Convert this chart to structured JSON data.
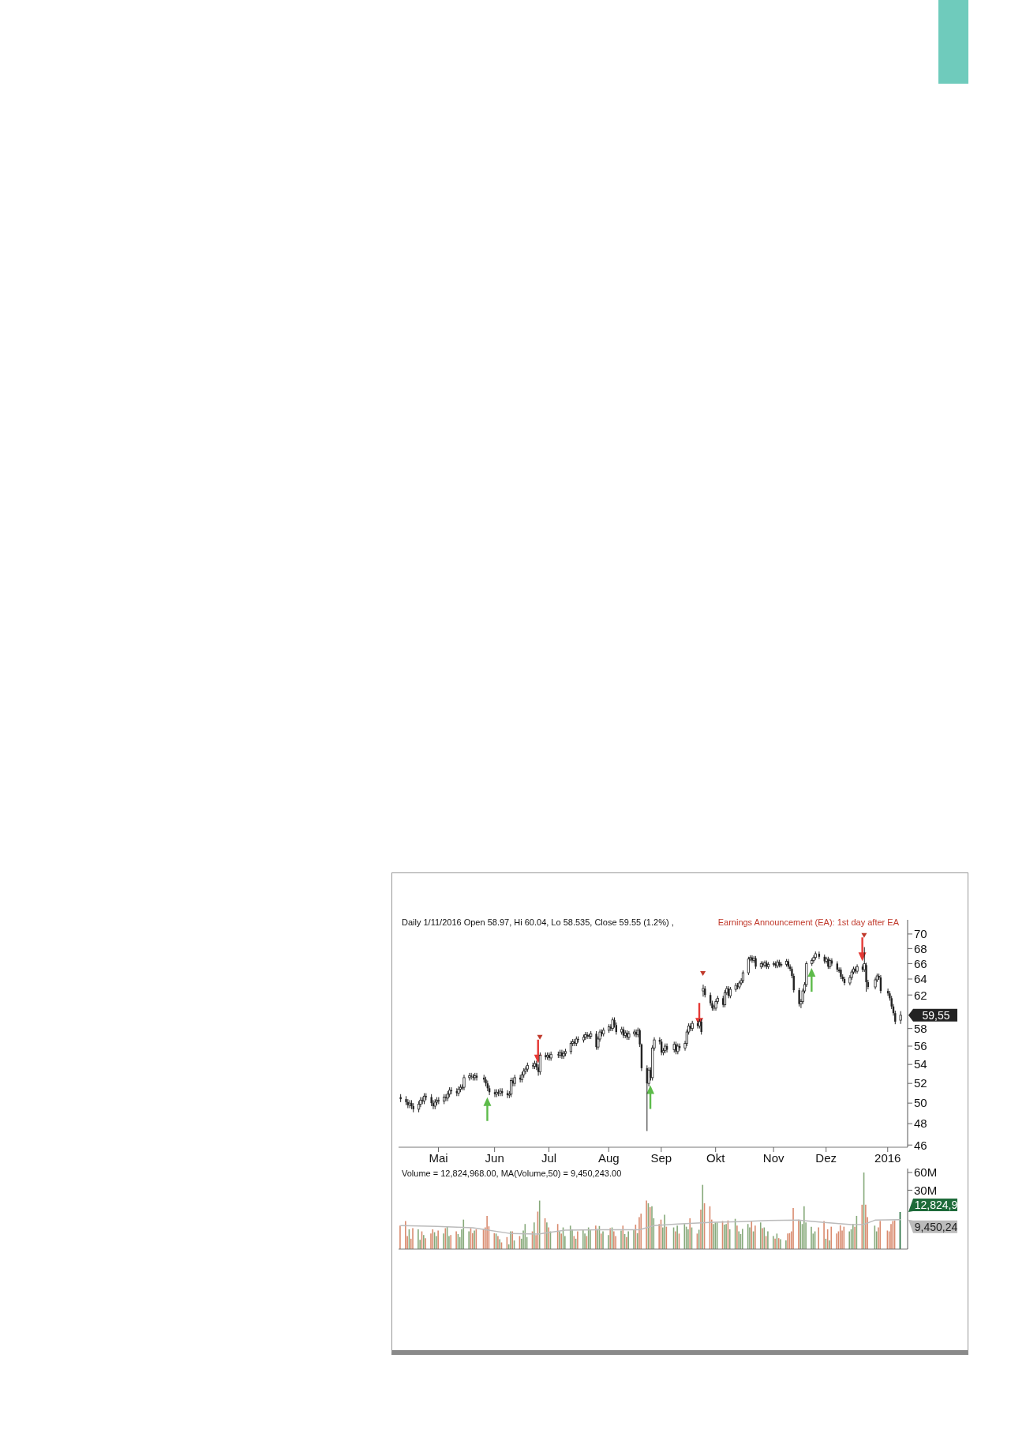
{
  "chart_data": [
    {
      "type": "candlestick",
      "title": "Daily 1/11/2016 Open 58.97, Hi 60.04, Lo 58.535, Close 59.55 (1.2%) ,",
      "color": "#222222",
      "legend": "top right",
      "log": true,
      "x": [
        "2015-04-10",
        "2015-04-13",
        "2015-04-14",
        "2015-04-15",
        "2015-04-16",
        "2015-04-17",
        "2015-04-20",
        "2015-04-21",
        "2015-04-22",
        "2015-04-23",
        "2015-04-24",
        "2015-04-27",
        "2015-04-28",
        "2015-04-29",
        "2015-04-30",
        "2015-05-01",
        "2015-05-04",
        "2015-05-05",
        "2015-05-06",
        "2015-05-07",
        "2015-05-08",
        "2015-05-11",
        "2015-05-12",
        "2015-05-13",
        "2015-05-14",
        "2015-05-15",
        "2015-05-18",
        "2015-05-19",
        "2015-05-20",
        "2015-05-21",
        "2015-05-22",
        "2015-05-26",
        "2015-05-27",
        "2015-05-28",
        "2015-05-29",
        "2015-06-01",
        "2015-06-02",
        "2015-06-03",
        "2015-06-04",
        "2015-06-05",
        "2015-06-08",
        "2015-06-09",
        "2015-06-10",
        "2015-06-11",
        "2015-06-12",
        "2015-06-15",
        "2015-06-16",
        "2015-06-17",
        "2015-06-18",
        "2015-06-19",
        "2015-06-22",
        "2015-06-23",
        "2015-06-24",
        "2015-06-25",
        "2015-06-26",
        "2015-06-29",
        "2015-06-30",
        "2015-07-01",
        "2015-07-02",
        "2015-07-06",
        "2015-07-07",
        "2015-07-08",
        "2015-07-09",
        "2015-07-10",
        "2015-07-13",
        "2015-07-14",
        "2015-07-15",
        "2015-07-16",
        "2015-07-17",
        "2015-07-20",
        "2015-07-21",
        "2015-07-22",
        "2015-07-23",
        "2015-07-24",
        "2015-07-27",
        "2015-07-28",
        "2015-07-29",
        "2015-07-30",
        "2015-07-31",
        "2015-08-03",
        "2015-08-04",
        "2015-08-05",
        "2015-08-06",
        "2015-08-07",
        "2015-08-10",
        "2015-08-11",
        "2015-08-12",
        "2015-08-13",
        "2015-08-14",
        "2015-08-17",
        "2015-08-18",
        "2015-08-19",
        "2015-08-20",
        "2015-08-21",
        "2015-08-24",
        "2015-08-25",
        "2015-08-26",
        "2015-08-27",
        "2015-08-28",
        "2015-08-31",
        "2015-09-01",
        "2015-09-02",
        "2015-09-03",
        "2015-09-04",
        "2015-09-08",
        "2015-09-09",
        "2015-09-10",
        "2015-09-11",
        "2015-09-14",
        "2015-09-15",
        "2015-09-16",
        "2015-09-17",
        "2015-09-18",
        "2015-09-21",
        "2015-09-22",
        "2015-09-23",
        "2015-09-24",
        "2015-09-25",
        "2015-09-28",
        "2015-09-29",
        "2015-09-30",
        "2015-10-01",
        "2015-10-02",
        "2015-10-05",
        "2015-10-06",
        "2015-10-07",
        "2015-10-08",
        "2015-10-09",
        "2015-10-12",
        "2015-10-13",
        "2015-10-14",
        "2015-10-15",
        "2015-10-16",
        "2015-10-19",
        "2015-10-20",
        "2015-10-21",
        "2015-10-22",
        "2015-10-23",
        "2015-10-26",
        "2015-10-27",
        "2015-10-28",
        "2015-10-29",
        "2015-10-30",
        "2015-11-02",
        "2015-11-03",
        "2015-11-04",
        "2015-11-05",
        "2015-11-06",
        "2015-11-09",
        "2015-11-10",
        "2015-11-11",
        "2015-11-12",
        "2015-11-13",
        "2015-11-16",
        "2015-11-17",
        "2015-11-18",
        "2015-11-19",
        "2015-11-20",
        "2015-11-23",
        "2015-11-24",
        "2015-11-25",
        "2015-11-27",
        "2015-11-30",
        "2015-12-01",
        "2015-12-02",
        "2015-12-03",
        "2015-12-04",
        "2015-12-07",
        "2015-12-08",
        "2015-12-09",
        "2015-12-10",
        "2015-12-11",
        "2015-12-14",
        "2015-12-15",
        "2015-12-16",
        "2015-12-17",
        "2015-12-18",
        "2015-12-21",
        "2015-12-22",
        "2015-12-23",
        "2015-12-24",
        "2015-12-28",
        "2015-12-29",
        "2015-12-30",
        "2015-12-31",
        "2016-01-04",
        "2016-01-05",
        "2016-01-06",
        "2016-01-07",
        "2016-01-08",
        "2016-01-11"
      ],
      "ohlc": [
        [
          50.6,
          50.9,
          50.1,
          50.4
        ],
        [
          50.4,
          50.7,
          49.8,
          50.1
        ],
        [
          50.1,
          50.4,
          49.5,
          49.8
        ],
        [
          49.8,
          50.3,
          49.5,
          50.0
        ],
        [
          50.0,
          50.3,
          49.4,
          49.7
        ],
        [
          49.7,
          50.0,
          49.1,
          49.4
        ],
        [
          49.4,
          50.2,
          49.1,
          49.9
        ],
        [
          49.9,
          50.6,
          49.6,
          50.3
        ],
        [
          50.3,
          50.6,
          49.9,
          50.2
        ],
        [
          50.2,
          51.0,
          49.9,
          50.7
        ],
        [
          50.7,
          51.0,
          50.3,
          50.6
        ],
        [
          50.6,
          50.9,
          49.7,
          50.0
        ],
        [
          50.0,
          50.3,
          49.4,
          49.7
        ],
        [
          49.7,
          50.4,
          49.4,
          50.1
        ],
        [
          50.1,
          50.6,
          49.8,
          50.3
        ],
        [
          50.3,
          50.6,
          49.9,
          50.2
        ],
        [
          50.2,
          50.9,
          49.9,
          50.6
        ],
        [
          50.6,
          50.9,
          50.2,
          50.5
        ],
        [
          50.5,
          51.2,
          50.2,
          50.9
        ],
        [
          50.9,
          51.6,
          50.6,
          51.3
        ],
        [
          51.3,
          51.6,
          50.9,
          51.2
        ],
        [
          51.2,
          51.5,
          50.7,
          51.0
        ],
        [
          51.0,
          51.7,
          50.7,
          51.4
        ],
        [
          51.4,
          51.9,
          51.1,
          51.6
        ],
        [
          51.6,
          51.9,
          51.3,
          51.6
        ],
        [
          51.6,
          52.9,
          51.3,
          52.6
        ],
        [
          52.6,
          53.1,
          52.3,
          52.8
        ],
        [
          52.8,
          53.1,
          52.4,
          52.7
        ],
        [
          52.7,
          53.0,
          52.3,
          52.6
        ],
        [
          52.6,
          53.1,
          52.3,
          52.8
        ],
        [
          52.8,
          53.1,
          52.3,
          52.6
        ],
        [
          52.6,
          52.9,
          52.1,
          52.4
        ],
        [
          52.4,
          52.7,
          51.7,
          52.0
        ],
        [
          52.0,
          52.3,
          51.2,
          51.5
        ],
        [
          51.5,
          51.8,
          50.8,
          51.1
        ],
        [
          51.1,
          51.4,
          50.6,
          50.9
        ],
        [
          50.9,
          51.4,
          50.6,
          51.1
        ],
        [
          51.1,
          51.4,
          50.7,
          51.0
        ],
        [
          51.0,
          51.5,
          50.7,
          51.2
        ],
        [
          51.2,
          51.5,
          50.7,
          51.0
        ],
        [
          51.0,
          51.3,
          50.5,
          50.8
        ],
        [
          50.8,
          51.2,
          50.5,
          50.9
        ],
        [
          50.9,
          52.6,
          50.6,
          52.3
        ],
        [
          52.3,
          52.6,
          51.7,
          52.0
        ],
        [
          52.0,
          52.9,
          51.7,
          52.6
        ],
        [
          52.6,
          52.9,
          52.1,
          52.4
        ],
        [
          52.4,
          53.2,
          52.1,
          52.9
        ],
        [
          52.9,
          53.6,
          52.6,
          53.3
        ],
        [
          53.3,
          53.8,
          53.0,
          53.5
        ],
        [
          53.5,
          54.2,
          53.2,
          53.9
        ],
        [
          53.9,
          54.2,
          53.5,
          53.8
        ],
        [
          53.8,
          54.4,
          53.5,
          54.1
        ],
        [
          54.1,
          54.4,
          53.4,
          53.7
        ],
        [
          53.7,
          54.0,
          52.8,
          53.2
        ],
        [
          53.2,
          55.3,
          52.9,
          55.0
        ],
        [
          55.0,
          55.3,
          54.5,
          54.8
        ],
        [
          54.8,
          55.3,
          54.5,
          55.0
        ],
        [
          55.0,
          55.3,
          54.4,
          54.7
        ],
        [
          54.7,
          55.4,
          54.4,
          55.1
        ],
        [
          55.1,
          55.4,
          54.7,
          55.0
        ],
        [
          55.0,
          55.6,
          54.7,
          55.3
        ],
        [
          55.3,
          55.6,
          54.6,
          54.9
        ],
        [
          54.9,
          55.5,
          54.6,
          55.2
        ],
        [
          55.2,
          55.7,
          54.9,
          55.4
        ],
        [
          55.4,
          56.6,
          55.1,
          56.3
        ],
        [
          56.3,
          56.8,
          56.0,
          56.5
        ],
        [
          56.5,
          56.8,
          56.0,
          56.3
        ],
        [
          56.3,
          57.1,
          56.0,
          56.8
        ],
        [
          56.8,
          57.1,
          56.4,
          56.7
        ],
        [
          56.7,
          57.3,
          56.4,
          57.0
        ],
        [
          57.0,
          57.6,
          56.7,
          57.3
        ],
        [
          57.3,
          57.6,
          56.8,
          57.1
        ],
        [
          57.1,
          57.4,
          56.8,
          57.2
        ],
        [
          57.1,
          57.7,
          56.8,
          57.4
        ],
        [
          57.4,
          57.7,
          55.6,
          55.9
        ],
        [
          55.9,
          57.1,
          55.6,
          56.8
        ],
        [
          56.8,
          57.9,
          56.5,
          57.6
        ],
        [
          57.6,
          57.9,
          57.1,
          57.4
        ],
        [
          57.4,
          58.1,
          57.1,
          57.8
        ],
        [
          57.8,
          58.5,
          57.5,
          58.2
        ],
        [
          58.2,
          58.5,
          57.7,
          58.0
        ],
        [
          58.0,
          59.3,
          57.7,
          59.0
        ],
        [
          59.0,
          59.3,
          58.1,
          58.4
        ],
        [
          58.4,
          58.7,
          57.3,
          57.6
        ],
        [
          57.6,
          58.2,
          57.3,
          57.9
        ],
        [
          57.9,
          58.2,
          56.9,
          57.2
        ],
        [
          57.2,
          57.8,
          56.9,
          57.5
        ],
        [
          57.5,
          57.8,
          56.7,
          57.0
        ],
        [
          57.0,
          57.7,
          56.7,
          57.4
        ],
        [
          57.4,
          57.9,
          57.1,
          57.6
        ],
        [
          57.6,
          57.9,
          57.0,
          57.3
        ],
        [
          57.3,
          58.1,
          57.0,
          57.8
        ],
        [
          57.8,
          58.0,
          55.9,
          56.2
        ],
        [
          56.2,
          56.3,
          53.3,
          53.6
        ],
        [
          53.6,
          53.9,
          47.3,
          52.0
        ],
        [
          52.0,
          53.7,
          51.7,
          53.4
        ],
        [
          53.4,
          53.7,
          52.3,
          52.6
        ],
        [
          52.6,
          56.1,
          52.3,
          55.8
        ],
        [
          55.8,
          57.0,
          55.5,
          56.7
        ],
        [
          56.7,
          57.0,
          56.2,
          56.5
        ],
        [
          56.5,
          56.8,
          55.0,
          55.3
        ],
        [
          55.3,
          55.8,
          55.0,
          55.5
        ],
        [
          55.5,
          56.3,
          55.2,
          56.0
        ],
        [
          56.0,
          56.3,
          55.3,
          55.6
        ],
        [
          55.6,
          56.5,
          55.3,
          56.2
        ],
        [
          56.2,
          56.5,
          55.1,
          55.4
        ],
        [
          55.4,
          56.3,
          55.1,
          56.0
        ],
        [
          56.0,
          56.3,
          55.5,
          55.8
        ],
        [
          55.8,
          56.6,
          55.5,
          56.3
        ],
        [
          56.3,
          57.9,
          56.0,
          57.6
        ],
        [
          57.6,
          58.6,
          57.3,
          58.3
        ],
        [
          58.3,
          58.6,
          57.7,
          58.0
        ],
        [
          58.0,
          58.9,
          57.7,
          58.6
        ],
        [
          58.6,
          58.9,
          58.0,
          58.3
        ],
        [
          58.3,
          59.1,
          58.0,
          58.8
        ],
        [
          58.8,
          59.1,
          57.3,
          57.6
        ],
        [
          62.5,
          63.3,
          61.8,
          62.8
        ],
        [
          62.8,
          63.1,
          61.7,
          62.0
        ],
        [
          62.0,
          62.3,
          60.7,
          61.0
        ],
        [
          61.0,
          61.3,
          60.1,
          60.4
        ],
        [
          60.4,
          60.8,
          60.1,
          60.6
        ],
        [
          60.4,
          61.5,
          60.1,
          61.2
        ],
        [
          61.2,
          61.9,
          60.9,
          61.6
        ],
        [
          61.6,
          61.9,
          60.5,
          60.8
        ],
        [
          60.8,
          62.6,
          60.5,
          62.3
        ],
        [
          62.3,
          63.1,
          62.0,
          62.8
        ],
        [
          62.8,
          63.1,
          61.6,
          61.9
        ],
        [
          61.9,
          63.0,
          61.6,
          62.7
        ],
        [
          62.7,
          63.5,
          62.4,
          63.2
        ],
        [
          63.2,
          63.5,
          62.7,
          63.0
        ],
        [
          63.0,
          63.8,
          62.7,
          63.5
        ],
        [
          63.5,
          64.1,
          63.2,
          63.8
        ],
        [
          63.8,
          65.1,
          63.5,
          64.8
        ],
        [
          64.8,
          66.9,
          64.5,
          66.6
        ],
        [
          66.6,
          67.1,
          66.3,
          66.8
        ],
        [
          66.8,
          67.1,
          66.1,
          66.4
        ],
        [
          66.4,
          67.0,
          66.1,
          66.7
        ],
        [
          66.7,
          67.0,
          65.3,
          65.6
        ],
        [
          65.6,
          66.3,
          65.3,
          66.0
        ],
        [
          66.0,
          66.3,
          65.5,
          65.8
        ],
        [
          65.8,
          66.4,
          65.5,
          66.1
        ],
        [
          66.1,
          66.4,
          65.3,
          65.6
        ],
        [
          65.6,
          66.2,
          65.3,
          65.9
        ],
        [
          65.9,
          66.3,
          65.6,
          66.0
        ],
        [
          66.0,
          66.3,
          65.4,
          65.7
        ],
        [
          65.7,
          66.5,
          65.4,
          66.2
        ],
        [
          66.2,
          66.5,
          65.5,
          65.8
        ],
        [
          65.8,
          66.2,
          65.5,
          65.9
        ],
        [
          65.9,
          66.6,
          65.6,
          66.3
        ],
        [
          66.3,
          66.6,
          65.3,
          65.6
        ],
        [
          65.6,
          65.9,
          65.0,
          65.3
        ],
        [
          65.3,
          65.6,
          64.1,
          64.4
        ],
        [
          64.4,
          64.7,
          62.3,
          62.6
        ],
        [
          62.6,
          62.9,
          60.6,
          60.9
        ],
        [
          60.9,
          61.5,
          60.4,
          61.2
        ],
        [
          61.2,
          62.8,
          60.9,
          62.5
        ],
        [
          62.5,
          63.6,
          62.2,
          63.3
        ],
        [
          63.3,
          66.3,
          63.0,
          66.0
        ],
        [
          66.0,
          66.7,
          65.7,
          66.4
        ],
        [
          66.4,
          67.1,
          66.1,
          66.8
        ],
        [
          66.8,
          67.6,
          66.5,
          67.3
        ],
        [
          67.3,
          67.6,
          66.6,
          66.9
        ],
        [
          66.9,
          67.2,
          66.0,
          66.3
        ],
        [
          66.3,
          66.9,
          66.0,
          66.6
        ],
        [
          66.6,
          66.9,
          65.3,
          65.6
        ],
        [
          65.6,
          66.7,
          65.3,
          66.4
        ],
        [
          66.4,
          66.7,
          65.7,
          66.0
        ],
        [
          66.0,
          66.3,
          64.9,
          65.2
        ],
        [
          65.2,
          65.5,
          64.8,
          65.0
        ],
        [
          65.2,
          65.5,
          64.0,
          64.3
        ],
        [
          64.3,
          64.6,
          63.7,
          64.0
        ],
        [
          64.0,
          64.3,
          63.2,
          63.5
        ],
        [
          63.5,
          64.5,
          63.2,
          64.2
        ],
        [
          64.2,
          65.2,
          63.9,
          64.9
        ],
        [
          64.9,
          65.6,
          64.6,
          65.3
        ],
        [
          65.3,
          65.6,
          64.7,
          65.0
        ],
        [
          65.0,
          65.9,
          64.7,
          65.6
        ],
        [
          65.6,
          65.9,
          64.9,
          65.2
        ],
        [
          65.2,
          68.2,
          64.9,
          66.0
        ],
        [
          65.8,
          66.1,
          62.4,
          63.6
        ],
        [
          63.6,
          63.9,
          62.7,
          63.0
        ],
        [
          63.0,
          64.2,
          62.7,
          63.9
        ],
        [
          63.9,
          64.7,
          63.6,
          64.4
        ],
        [
          64.4,
          64.7,
          63.9,
          64.2
        ],
        [
          64.2,
          64.5,
          62.2,
          62.5
        ],
        [
          62.5,
          62.8,
          61.9,
          62.2
        ],
        [
          62.2,
          62.5,
          61.3,
          61.6
        ],
        [
          61.6,
          61.9,
          60.3,
          60.6
        ],
        [
          60.6,
          60.9,
          59.5,
          59.8
        ],
        [
          59.8,
          60.1,
          58.5,
          58.8
        ],
        [
          58.97,
          60.04,
          58.535,
          59.55
        ]
      ],
      "series": [
        {
          "name": "Earnings Announcement (EA): 1st day after EA",
          "type": "scatter",
          "color": "#c0392b",
          "marker": "triangle",
          "x": [
            "2015-06-26",
            "2015-09-24",
            "2015-12-22"
          ],
          "values": [
            57.0,
            64.7,
            69.8
          ]
        },
        {
          "type": "scatter",
          "color": "#5dbb4a",
          "x": [
            "2015-05-28",
            "2015-08-26",
            "2015-11-23"
          ],
          "values": [
            49.4,
            50.6,
            63.9
          ]
        },
        {
          "type": "scatter",
          "color": "#e53935",
          "x": [
            "2015-06-25",
            "2015-09-22",
            "2015-12-21"
          ],
          "values": [
            55.4,
            59.6,
            67.9
          ]
        }
      ],
      "xlim": [
        "2015-04-09",
        "2016-01-15"
      ],
      "xticks": [
        {
          "value": "2015-05-01",
          "label": "Mai"
        },
        {
          "value": "2015-06-01",
          "label": "Jun"
        },
        {
          "value": "2015-07-01",
          "label": "Jul"
        },
        {
          "value": "2015-08-03",
          "label": "Aug"
        },
        {
          "value": "2015-09-01",
          "label": "Sep"
        },
        {
          "value": "2015-10-01",
          "label": "Okt"
        },
        {
          "value": "2015-11-02",
          "label": "Nov"
        },
        {
          "value": "2015-12-01",
          "label": "Dez"
        },
        {
          "value": "2016-01-04",
          "label": "2016"
        }
      ],
      "ylim": [
        45.8,
        72
      ],
      "yticks": [
        46,
        48,
        50,
        52,
        54,
        56,
        58,
        62,
        64,
        66,
        68,
        70
      ],
      "annotations": [
        {
          "text": "59,55",
          "x": "2016-01-11",
          "y": 59.55
        }
      ]
    },
    {
      "type": "bar",
      "title": "Volume = 12,824,968.00, MA(Volume,50) = 9,450,243.00",
      "log": true,
      "tick_labels": "y",
      "x": [
        "2015-04-10",
        "2015-04-13",
        "2015-04-14",
        "2015-04-15",
        "2015-04-16",
        "2015-04-17",
        "2015-04-20",
        "2015-04-21",
        "2015-04-22",
        "2015-04-23",
        "2015-04-24",
        "2015-04-27",
        "2015-04-28",
        "2015-04-29",
        "2015-04-30",
        "2015-05-01",
        "2015-05-04",
        "2015-05-05",
        "2015-05-06",
        "2015-05-07",
        "2015-05-08",
        "2015-05-11",
        "2015-05-12",
        "2015-05-13",
        "2015-05-14",
        "2015-05-15",
        "2015-05-18",
        "2015-05-19",
        "2015-05-20",
        "2015-05-21",
        "2015-05-22",
        "2015-05-26",
        "2015-05-27",
        "2015-05-28",
        "2015-05-29",
        "2015-06-01",
        "2015-06-02",
        "2015-06-03",
        "2015-06-04",
        "2015-06-05",
        "2015-06-08",
        "2015-06-09",
        "2015-06-10",
        "2015-06-11",
        "2015-06-12",
        "2015-06-15",
        "2015-06-16",
        "2015-06-17",
        "2015-06-18",
        "2015-06-19",
        "2015-06-22",
        "2015-06-23",
        "2015-06-24",
        "2015-06-25",
        "2015-06-26",
        "2015-06-29",
        "2015-06-30",
        "2015-07-01",
        "2015-07-02",
        "2015-07-06",
        "2015-07-07",
        "2015-07-08",
        "2015-07-09",
        "2015-07-10",
        "2015-07-13",
        "2015-07-14",
        "2015-07-15",
        "2015-07-16",
        "2015-07-17",
        "2015-07-20",
        "2015-07-21",
        "2015-07-22",
        "2015-07-23",
        "2015-07-24",
        "2015-07-27",
        "2015-07-28",
        "2015-07-29",
        "2015-07-30",
        "2015-07-31",
        "2015-08-03",
        "2015-08-04",
        "2015-08-05",
        "2015-08-06",
        "2015-08-07",
        "2015-08-10",
        "2015-08-11",
        "2015-08-12",
        "2015-08-13",
        "2015-08-14",
        "2015-08-17",
        "2015-08-18",
        "2015-08-19",
        "2015-08-20",
        "2015-08-21",
        "2015-08-24",
        "2015-08-25",
        "2015-08-26",
        "2015-08-27",
        "2015-08-28",
        "2015-08-31",
        "2015-09-01",
        "2015-09-02",
        "2015-09-03",
        "2015-09-04",
        "2015-09-08",
        "2015-09-09",
        "2015-09-10",
        "2015-09-11",
        "2015-09-14",
        "2015-09-15",
        "2015-09-16",
        "2015-09-17",
        "2015-09-18",
        "2015-09-21",
        "2015-09-22",
        "2015-09-23",
        "2015-09-24",
        "2015-09-25",
        "2015-09-28",
        "2015-09-29",
        "2015-09-30",
        "2015-10-01",
        "2015-10-02",
        "2015-10-05",
        "2015-10-06",
        "2015-10-07",
        "2015-10-08",
        "2015-10-09",
        "2015-10-12",
        "2015-10-13",
        "2015-10-14",
        "2015-10-15",
        "2015-10-16",
        "2015-10-19",
        "2015-10-20",
        "2015-10-21",
        "2015-10-22",
        "2015-10-23",
        "2015-10-26",
        "2015-10-27",
        "2015-10-28",
        "2015-10-29",
        "2015-10-30",
        "2015-11-02",
        "2015-11-03",
        "2015-11-04",
        "2015-11-05",
        "2015-11-06",
        "2015-11-09",
        "2015-11-10",
        "2015-11-11",
        "2015-11-12",
        "2015-11-13",
        "2015-11-16",
        "2015-11-17",
        "2015-11-18",
        "2015-11-19",
        "2015-11-20",
        "2015-11-23",
        "2015-11-24",
        "2015-11-25",
        "2015-11-27",
        "2015-11-30",
        "2015-12-01",
        "2015-12-02",
        "2015-12-03",
        "2015-12-04",
        "2015-12-07",
        "2015-12-08",
        "2015-12-09",
        "2015-12-10",
        "2015-12-11",
        "2015-12-14",
        "2015-12-15",
        "2015-12-16",
        "2015-12-17",
        "2015-12-18",
        "2015-12-21",
        "2015-12-22",
        "2015-12-23",
        "2015-12-24",
        "2015-12-28",
        "2015-12-29",
        "2015-12-30",
        "2015-12-31",
        "2016-01-04",
        "2016-01-05",
        "2016-01-06",
        "2016-01-07",
        "2016-01-08",
        "2016-01-11"
      ],
      "series": [
        {
          "type": "bar",
          "values": [
            7.5,
            9.0,
            5.0,
            6.5,
            4.5,
            6.8,
            6.5,
            4.3,
            6.0,
            5.2,
            4.6,
            5.5,
            6.5,
            5.8,
            5.0,
            6.2,
            5.5,
            6.8,
            7.2,
            5.0,
            5.2,
            6.0,
            5.4,
            4.8,
            6.5,
            9.5,
            6.0,
            6.8,
            5.6,
            6.2,
            6.5,
            6.6,
            7.0,
            11.0,
            7.3,
            5.6,
            5.5,
            5.0,
            4.4,
            3.9,
            4.8,
            3.6,
            6.0,
            6.0,
            4.2,
            5.0,
            4.5,
            6.2,
            8.0,
            4.8,
            6.0,
            8.5,
            5.2,
            13.0,
            20.0,
            10.0,
            8.5,
            7.0,
            6.0,
            8.0,
            6.0,
            5.5,
            7.0,
            5.0,
            7.5,
            6.5,
            5.0,
            4.5,
            6.0,
            6.5,
            5.5,
            5.0,
            7.0,
            6.5,
            7.5,
            6.6,
            7.4,
            5.5,
            6.0,
            5.2,
            6.8,
            7.0,
            6.0,
            5.0,
            6.2,
            7.5,
            5.4,
            4.8,
            6.0,
            6.4,
            7.8,
            5.6,
            10.5,
            12.0,
            20.0,
            18.0,
            15.5,
            16.0,
            10.0,
            8.0,
            9.5,
            7.0,
            11.5,
            7.2,
            7.0,
            6.0,
            7.5,
            5.5,
            8.0,
            7.2,
            6.5,
            10.0,
            7.0,
            5.5,
            6.4,
            14.0,
            37.0,
            18.0,
            16.0,
            9.5,
            8.0,
            8.5,
            8.5,
            9.0,
            7.8,
            8.0,
            9.2,
            6.5,
            9.8,
            7.5,
            6.0,
            5.4,
            6.6,
            8.0,
            7.0,
            9.0,
            6.0,
            7.5,
            8.5,
            6.8,
            7.0,
            5.0,
            6.0,
            5.0,
            4.5,
            5.5,
            4.6,
            4.4,
            4.2,
            5.5,
            5.6,
            6.0,
            15.0,
            9.5,
            9.0,
            8.0,
            16.0,
            8.5,
            7.2,
            5.5,
            6.0,
            7.0,
            9.0,
            4.5,
            6.5,
            4.2,
            7.2,
            5.5,
            6.0,
            7.6,
            6.2,
            7.2,
            6.0,
            6.5,
            8.0,
            7.2,
            11.0,
            17.0,
            60.0,
            17.0,
            10.5,
            7.5,
            6.0,
            7.0,
            9.0,
            6.2,
            6.0,
            8.0,
            9.0,
            9.2,
            12.82
          ],
          "colors": [
            "#d98b6f",
            "#d98b6f",
            "#d98b6f",
            "#86a97a",
            "#d98b6f",
            "#d98b6f",
            "#86a97a",
            "#86a97a",
            "#d98b6f",
            "#86a97a",
            "#d98b6f",
            "#d98b6f",
            "#d98b6f",
            "#86a97a",
            "#86a97a",
            "#d98b6f",
            "#86a97a",
            "#d98b6f",
            "#86a97a",
            "#86a97a",
            "#d98b6f",
            "#d98b6f",
            "#86a97a",
            "#86a97a",
            "#86a97a",
            "#86a97a",
            "#86a97a",
            "#d98b6f",
            "#d98b6f",
            "#86a97a",
            "#d98b6f",
            "#d98b6f",
            "#d98b6f",
            "#d98b6f",
            "#d98b6f",
            "#d98b6f",
            "#86a97a",
            "#d98b6f",
            "#86a97a",
            "#d98b6f",
            "#d98b6f",
            "#86a97a",
            "#86a97a",
            "#d98b6f",
            "#86a97a",
            "#d98b6f",
            "#86a97a",
            "#86a97a",
            "#86a97a",
            "#86a97a",
            "#d98b6f",
            "#86a97a",
            "#d98b6f",
            "#d98b6f",
            "#86a97a",
            "#d98b6f",
            "#86a97a",
            "#d98b6f",
            "#86a97a",
            "#d98b6f",
            "#86a97a",
            "#d98b6f",
            "#86a97a",
            "#86a97a",
            "#86a97a",
            "#86a97a",
            "#d98b6f",
            "#86a97a",
            "#d98b6f",
            "#86a97a",
            "#86a97a",
            "#d98b6f",
            "#86a97a",
            "#86a97a",
            "#d98b6f",
            "#86a97a",
            "#86a97a",
            "#d98b6f",
            "#86a97a",
            "#86a97a",
            "#d98b6f",
            "#86a97a",
            "#d98b6f",
            "#d98b6f",
            "#86a97a",
            "#d98b6f",
            "#86a97a",
            "#d98b6f",
            "#86a97a",
            "#86a97a",
            "#d98b6f",
            "#86a97a",
            "#d98b6f",
            "#d98b6f",
            "#d98b6f",
            "#86a97a",
            "#d98b6f",
            "#86a97a",
            "#86a97a",
            "#d98b6f",
            "#d98b6f",
            "#86a97a",
            "#86a97a",
            "#d98b6f",
            "#86a97a",
            "#d98b6f",
            "#86a97a",
            "#d98b6f",
            "#86a97a",
            "#86a97a",
            "#86a97a",
            "#d98b6f",
            "#86a97a",
            "#d98b6f",
            "#86a97a",
            "#d98b6f",
            "#86a97a",
            "#d98b6f",
            "#d98b6f",
            "#d98b6f",
            "#86a97a",
            "#86a97a",
            "#86a97a",
            "#d98b6f",
            "#86a97a",
            "#86a97a",
            "#d98b6f",
            "#86a97a",
            "#86a97a",
            "#d98b6f",
            "#86a97a",
            "#86a97a",
            "#86a97a",
            "#86a97a",
            "#86a97a",
            "#d98b6f",
            "#86a97a",
            "#d98b6f",
            "#86a97a",
            "#d98b6f",
            "#86a97a",
            "#d98b6f",
            "#86a97a",
            "#86a97a",
            "#d98b6f",
            "#86a97a",
            "#d98b6f",
            "#86a97a",
            "#86a97a",
            "#d98b6f",
            "#d98b6f",
            "#d98b6f",
            "#d98b6f",
            "#d98b6f",
            "#86a97a",
            "#86a97a",
            "#86a97a",
            "#86a97a",
            "#86a97a",
            "#86a97a",
            "#86a97a",
            "#d98b6f",
            "#d98b6f",
            "#86a97a",
            "#d98b6f",
            "#86a97a",
            "#d98b6f",
            "#d98b6f",
            "#d98b6f",
            "#d98b6f",
            "#d98b6f",
            "#d98b6f",
            "#86a97a",
            "#86a97a",
            "#86a97a",
            "#d98b6f",
            "#86a97a",
            "#d98b6f",
            "#86a97a",
            "#d98b6f",
            "#d98b6f",
            "#86a97a",
            "#86a97a",
            "#d98b6f",
            "#d98b6f",
            "#d98b6f",
            "#d98b6f",
            "#d98b6f",
            "#d98b6f",
            "#d98b6f",
            "#1e6b3a"
          ]
        },
        {
          "type": "line",
          "color": "#bbbbbb",
          "x": [
            "2015-04-10",
            "2015-04-30",
            "2015-05-20",
            "2015-06-10",
            "2015-06-25",
            "2015-07-10",
            "2015-07-31",
            "2015-08-20",
            "2015-08-28",
            "2015-09-10",
            "2015-09-30",
            "2015-10-15",
            "2015-10-30",
            "2015-11-16",
            "2015-11-30",
            "2015-12-15",
            "2015-12-22",
            "2015-12-28",
            "2016-01-11"
          ],
          "values": [
            7.5,
            7.3,
            6.9,
            5.5,
            5.4,
            6.3,
            6.4,
            6.4,
            7.5,
            8.0,
            8.6,
            8.8,
            9.2,
            9.3,
            8.5,
            7.8,
            7.9,
            9.3,
            9.45
          ]
        }
      ],
      "xlim": [
        "2015-04-09",
        "2016-01-15"
      ],
      "ylim": [
        3,
        70
      ],
      "yticks": [
        {
          "value": 60,
          "label": "60M"
        },
        {
          "value": 30,
          "label": "30M"
        }
      ],
      "annotations": [
        {
          "text": "12,824,9",
          "x": "2016-01-11",
          "y": 12.82
        },
        {
          "text": "9,450,24",
          "x": "2016-01-11",
          "y": 9.45
        }
      ]
    }
  ]
}
